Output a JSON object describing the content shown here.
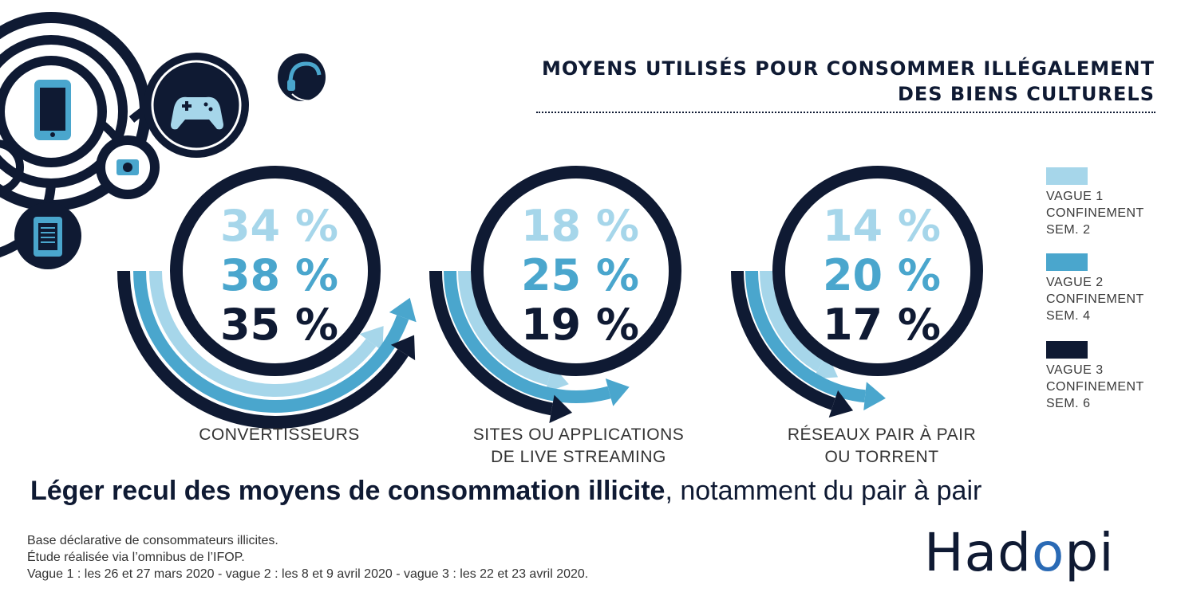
{
  "header": {
    "title_line1": "MOYENS UTILISÉS POUR CONSOMMER ILLÉGALEMENT",
    "title_line2": "DES BIENS CULTURELS"
  },
  "icons": [
    "smartphone-icon",
    "gamepad-icon",
    "headphones-icon",
    "camera-icon",
    "ebook-reader-icon"
  ],
  "colors": {
    "vague1": "#a6d6ea",
    "vague2": "#4aa6cd",
    "vague3": "#0f1a33"
  },
  "chart_data": {
    "type": "bar",
    "categories": [
      "CONVERTISSEURS",
      "SITES OU APPLICATIONS DE LIVE STREAMING",
      "RÉSEAUX PAIR À PAIR OU TORRENT"
    ],
    "category_lines": [
      [
        "CONVERTISSEURS"
      ],
      [
        "SITES OU APPLICATIONS",
        "DE LIVE STREAMING"
      ],
      [
        "RÉSEAUX PAIR À PAIR",
        "OU TORRENT"
      ]
    ],
    "unit": "%",
    "series": [
      {
        "name": "VAGUE 1 CONFINEMENT SEM. 2",
        "values": [
          34,
          18,
          14
        ]
      },
      {
        "name": "VAGUE 2 CONFINEMENT SEM. 4",
        "values": [
          38,
          25,
          20
        ]
      },
      {
        "name": "VAGUE 3 CONFINEMENT SEM. 6",
        "values": [
          35,
          19,
          17
        ]
      }
    ],
    "value_labels": [
      [
        "34 %",
        "18 %",
        "14 %"
      ],
      [
        "38 %",
        "25 %",
        "20 %"
      ],
      [
        "35 %",
        "19 %",
        "17 %"
      ]
    ],
    "legend_position": "right"
  },
  "legend": [
    {
      "label": "VAGUE 1\nCONFINEMENT\nSEM. 2",
      "color": "#a6d6ea"
    },
    {
      "label": "VAGUE 2\nCONFINEMENT\nSEM. 4",
      "color": "#4aa6cd"
    },
    {
      "label": "VAGUE 3\nCONFINEMENT\nSEM. 6",
      "color": "#0f1a33"
    }
  ],
  "headline": {
    "bold": "Léger recul des moyens de consommation illicite",
    "rest": ", notamment du pair à pair"
  },
  "notes": [
    "Base déclarative de consommateurs illicites.",
    "Étude réalisée via l’omnibus de l’IFOP.",
    "Vague 1 : les 26 et 27 mars 2020 - vague 2 : les 8 et 9 avril 2020 - vague 3 : les 22 et 23 avril 2020."
  ],
  "logo": {
    "pre": "Had",
    "o": "o",
    "post": "pi"
  }
}
